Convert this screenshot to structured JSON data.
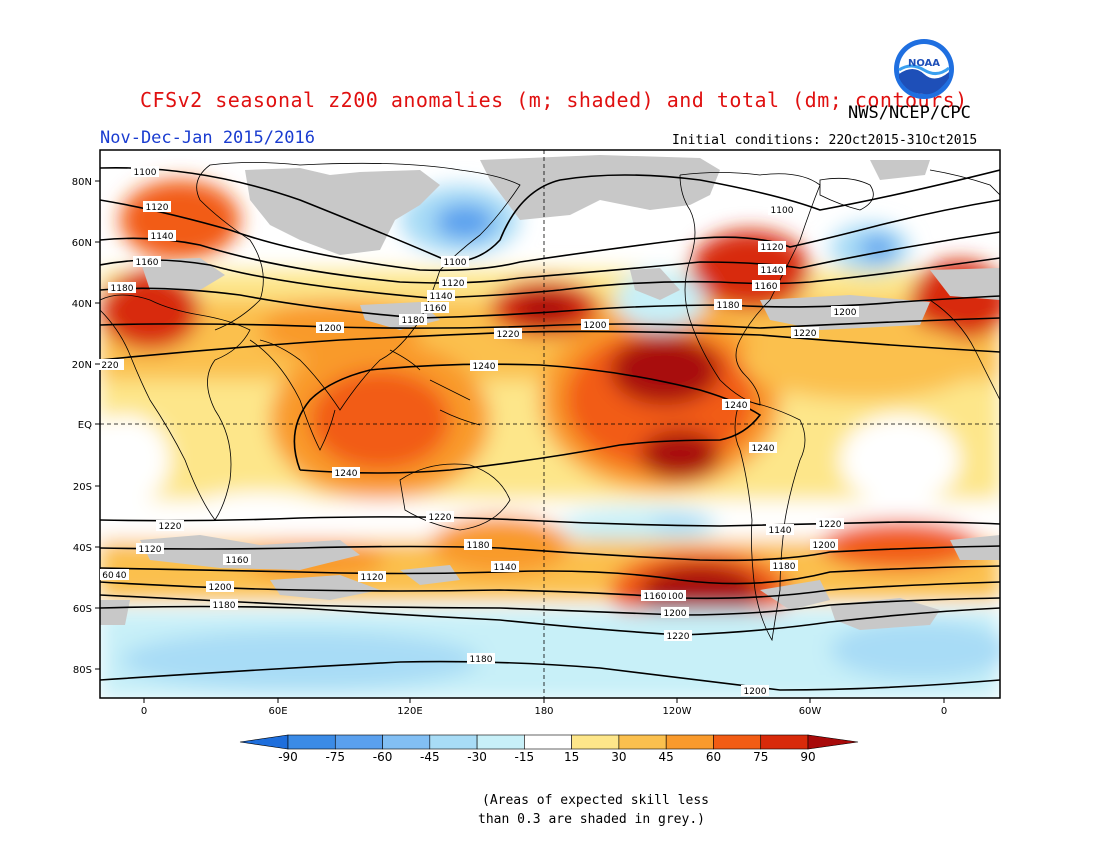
{
  "header": {
    "title": "CFSv2 seasonal z200 anomalies (m; shaded) and total (dm; contours)",
    "agency": "NWS/NCEP/CPC",
    "period": "Nov-Dec-Jan 2015/2016",
    "initial_conditions": "Initial conditions: 22Oct2015-31Oct2015",
    "logo_text": "NOAA"
  },
  "map": {
    "lat_labels": [
      "80N",
      "60N",
      "40N",
      "20N",
      "EQ",
      "20S",
      "40S",
      "60S",
      "80S"
    ],
    "lon_labels": [
      "0",
      "60E",
      "120E",
      "180",
      "120W",
      "60W",
      "0"
    ],
    "contour_labels": [
      "1100",
      "1120",
      "1140",
      "1160",
      "1180",
      "1200",
      "1220",
      "1240",
      "1240",
      "1240",
      "1220",
      "1200",
      "1180",
      "1160",
      "1140",
      "1120",
      "1100",
      "1100",
      "1120",
      "1140",
      "1160",
      "1180",
      "1200",
      "1220",
      "1240",
      "1220",
      "1200",
      "1180",
      "1160",
      "1140",
      "1120",
      "1100",
      "1160",
      "1140",
      "1120",
      "1100",
      "1200",
      "1220",
      "1180",
      "1200",
      "1220",
      "1200",
      "1180",
      "1160",
      "1140",
      "1120",
      "1200",
      "1180",
      "220",
      "60"
    ]
  },
  "colorbar": {
    "tick_labels": [
      "-90",
      "-75",
      "-60",
      "-45",
      "-30",
      "-15",
      "15",
      "30",
      "45",
      "60",
      "75",
      "90"
    ],
    "colors": [
      "#1e6edc",
      "#3b8be6",
      "#5aa0ee",
      "#82bff4",
      "#a8dcf6",
      "#c8f0f8",
      "#ffffff",
      "#fde68a",
      "#fbc04e",
      "#f99a2c",
      "#f25c14",
      "#d82a0a",
      "#a80a0a"
    ]
  },
  "footnote": {
    "line1": "(Areas of expected skill less",
    "line2": "than 0.3 are shaded in grey.)"
  }
}
